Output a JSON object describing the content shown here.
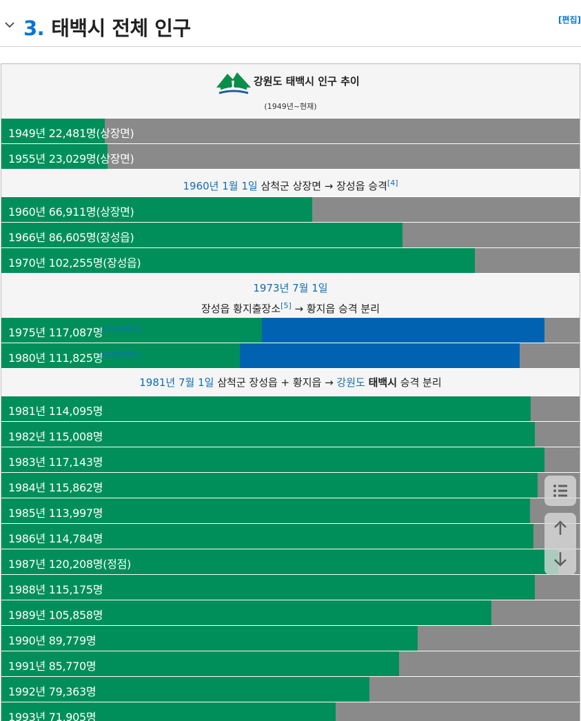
{
  "section": {
    "number": "3.",
    "title": "태백시 전체 인구",
    "edit_label": "[편집]"
  },
  "caption": {
    "title": "강원도 태백시 인구 추이",
    "subtitle": "(1949년~현재)"
  },
  "colors": {
    "green": "#008f5a",
    "blue": "#0062b1",
    "gray": "#8a8a8a",
    "link": "#0f6db5"
  },
  "rows_a": [
    {
      "label": "1949년 22,481명(상장면)",
      "fraction": 0.179
    },
    {
      "label": "1955년 23,029명(상장면)",
      "fraction": 0.184
    }
  ],
  "note_1960": {
    "link": "1960년 1월 1일",
    "text": " 삼척군 상장면 → 장성읍 승격",
    "ref": "[4]"
  },
  "rows_b": [
    {
      "label": "1960년 66,911명(상장면)",
      "fraction": 0.537
    },
    {
      "label": "1966년 86,605명(장성읍)",
      "fraction": 0.694
    },
    {
      "label": "1970년 102,255명(장성읍)",
      "fraction": 0.819
    }
  ],
  "note_1973": {
    "link": "1973년 7월 1일",
    "text_before": "장성읍 황지출장소",
    "ref": "[5]",
    "text_after": " → 황지읍 승격 분리"
  },
  "rows_c": [
    {
      "label": "1975년 117,087명",
      "label2": "(1975태백시)",
      "fraction": 0.451,
      "fraction2": 0.489
    },
    {
      "label": "1980년 111,825명",
      "label2": "(1980태백시)",
      "fraction": 0.412,
      "fraction2": 0.484
    }
  ],
  "note_1981": {
    "link1": "1981년 7월 1일",
    "text1": " 삼척군 장성읍 + 황지읍 → ",
    "link2": "강원도",
    "text2": " ",
    "bold": "태백시",
    "text3": " 승격 분리"
  },
  "rows_d": [
    {
      "label": "1981년 114,095명",
      "fraction": 0.915
    },
    {
      "label": "1982년 115,008명",
      "fraction": 0.922
    },
    {
      "label": "1983년 117,143명",
      "fraction": 0.939
    },
    {
      "label": "1984년 115,862명",
      "fraction": 0.927
    },
    {
      "label": "1985년 113,997명",
      "fraction": 0.914
    },
    {
      "label": "1986년 114,784명",
      "fraction": 0.92
    },
    {
      "label": "1987년 120,208명(정점)",
      "fraction": 0.963
    },
    {
      "label": "1988년 115,175명",
      "fraction": 0.923
    },
    {
      "label": "1989년 105,858명",
      "fraction": 0.848
    },
    {
      "label": "1990년 89,779명",
      "fraction": 0.72
    },
    {
      "label": "1991년 85,770명",
      "fraction": 0.688
    },
    {
      "label": "1992년 79,363명",
      "fraction": 0.637
    },
    {
      "label": "1993년 71,905명",
      "fraction": 0.578
    }
  ],
  "icons": {
    "toc": "list-icon",
    "up": "arrow-up-icon",
    "down": "arrow-down-icon",
    "collapse": "chevron-down-icon"
  }
}
